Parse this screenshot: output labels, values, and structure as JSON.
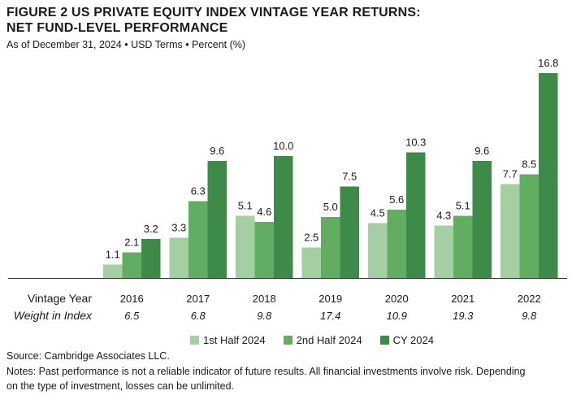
{
  "header": {
    "title_line1": "FIGURE 2  US PRIVATE EQUITY INDEX VINTAGE YEAR RETURNS:",
    "title_line2": "NET FUND-LEVEL PERFORMANCE",
    "subtitle": "As of December 31, 2024 • USD Terms • Percent (%)"
  },
  "chart_data": {
    "type": "bar",
    "row_labels": {
      "categories": "Vintage Year",
      "weights": "Weight in Index"
    },
    "categories": [
      "2016",
      "2017",
      "2018",
      "2019",
      "2020",
      "2021",
      "2022"
    ],
    "weights": [
      "6.5",
      "6.8",
      "9.8",
      "17.4",
      "10.9",
      "19.3",
      "9.8"
    ],
    "series": [
      {
        "name": "1st Half 2024",
        "color": "#a3cfa3",
        "values": [
          1.1,
          3.3,
          5.1,
          2.5,
          4.5,
          4.3,
          7.7
        ]
      },
      {
        "name": "2nd Half 2024",
        "color": "#63ad63",
        "values": [
          2.1,
          6.3,
          4.6,
          5.0,
          5.6,
          5.1,
          8.5
        ]
      },
      {
        "name": "CY 2024",
        "color": "#3e8a48",
        "values": [
          3.2,
          9.6,
          10.0,
          7.5,
          10.3,
          9.6,
          16.8
        ]
      }
    ],
    "ylim": [
      0,
      16.8
    ],
    "grid": false,
    "legend_position": "bottom"
  },
  "footer": {
    "source": "Source: Cambridge Associates LLC.",
    "notes_line1": "Notes: Past performance is not a reliable indicator of future results. All financial investments involve risk. Depending",
    "notes_line2": "on the type of investment, losses can be unlimited."
  }
}
